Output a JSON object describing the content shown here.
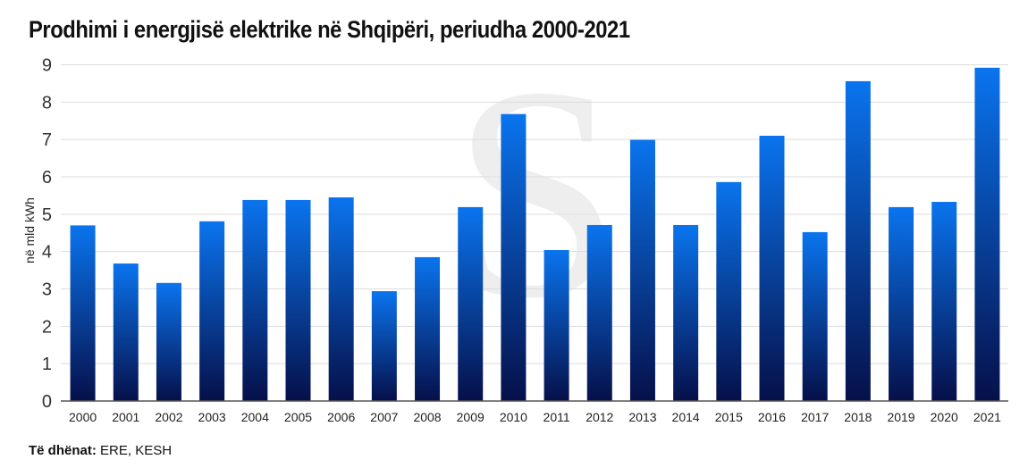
{
  "chart_data": {
    "type": "bar",
    "title": "Prodhimi i energjisë elektrike në Shqipëri, periudha 2000-2021",
    "xlabel": "",
    "ylabel": "në mld kWh",
    "ylim": [
      0,
      9
    ],
    "yticks": [
      "0",
      "1",
      "2",
      "3",
      "4",
      "5",
      "6",
      "7",
      "8",
      "9"
    ],
    "grid": true,
    "categories": [
      "2000",
      "2001",
      "2002",
      "2003",
      "2004",
      "2005",
      "2006",
      "2007",
      "2008",
      "2009",
      "2010",
      "2011",
      "2012",
      "2013",
      "2014",
      "2015",
      "2016",
      "2017",
      "2018",
      "2019",
      "2020",
      "2021"
    ],
    "values": [
      4.7,
      3.68,
      3.16,
      4.81,
      5.38,
      5.38,
      5.45,
      2.94,
      3.85,
      5.19,
      7.68,
      4.04,
      4.71,
      6.99,
      4.71,
      5.86,
      7.1,
      4.52,
      8.56,
      5.19,
      5.33,
      8.92
    ],
    "colors": {
      "bar_top": "#0a74ee",
      "bar_bottom": "#06104a",
      "grid": "#dddddd",
      "axis": "#555555"
    }
  },
  "source": {
    "label": "Të dhënat:",
    "value": " ERE, KESH"
  }
}
